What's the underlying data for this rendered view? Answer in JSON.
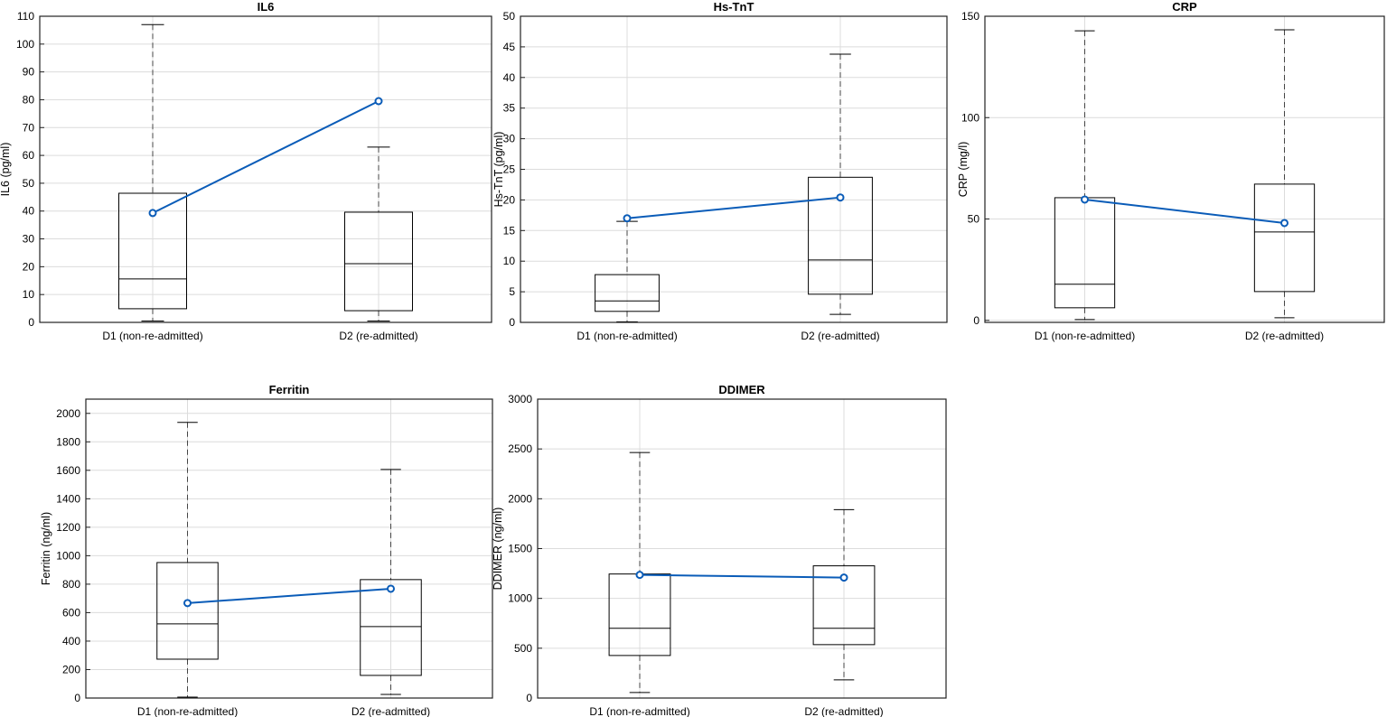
{
  "chart_data": [
    {
      "type": "box",
      "title": "IL6",
      "ylabel": "IL6 (pg/ml)",
      "categories": [
        "D1 (non-re-admitted)",
        "D2 (re-admitted)"
      ],
      "ylim": [
        0,
        110
      ],
      "yticks": [
        0,
        10,
        20,
        30,
        40,
        50,
        60,
        70,
        80,
        90,
        100,
        110
      ],
      "grid": true,
      "boxes": [
        {
          "whisker_low": 0.5,
          "q1": 4.9,
          "median": 15.6,
          "q3": 46.4,
          "whisker_high": 107
        },
        {
          "whisker_low": 0.5,
          "q1": 4.2,
          "median": 21.1,
          "q3": 39.6,
          "whisker_high": 63
        }
      ],
      "mean_line": {
        "color": "#0a5cb8",
        "values": [
          39.3,
          79.5
        ]
      }
    },
    {
      "type": "box",
      "title": "Hs-TnT",
      "ylabel": "Hs-TnT (pg/ml)",
      "categories": [
        "D1 (non-re-admitted)",
        "D2 (re-admitted)"
      ],
      "ylim": [
        0,
        50
      ],
      "yticks": [
        0,
        5,
        10,
        15,
        20,
        25,
        30,
        35,
        40,
        45,
        50
      ],
      "grid": true,
      "boxes": [
        {
          "whisker_low": 0.1,
          "q1": 1.8,
          "median": 3.5,
          "q3": 7.8,
          "whisker_high": 16.5
        },
        {
          "whisker_low": 1.3,
          "q1": 4.6,
          "median": 10.2,
          "q3": 23.7,
          "whisker_high": 43.8
        }
      ],
      "mean_line": {
        "color": "#0a5cb8",
        "values": [
          17,
          20.4
        ]
      }
    },
    {
      "type": "box",
      "title": "CRP",
      "ylabel": "CRP (mg/l)",
      "categories": [
        "D1 (non-re-admitted)",
        "D2 (re-admitted)"
      ],
      "ylim": [
        -1,
        150
      ],
      "yticks": [
        0,
        50,
        100,
        150
      ],
      "grid": true,
      "boxes": [
        {
          "whisker_low": 0.4,
          "q1": 6.2,
          "median": 17.8,
          "q3": 60.5,
          "whisker_high": 142.8
        },
        {
          "whisker_low": 1.3,
          "q1": 14.2,
          "median": 43.6,
          "q3": 67.2,
          "whisker_high": 143.3
        }
      ],
      "mean_line": {
        "color": "#0a5cb8",
        "values": [
          59.6,
          48
        ]
      }
    },
    {
      "type": "box",
      "title": "Ferritin",
      "ylabel": "Ferritin (ng/ml)",
      "categories": [
        "D1 (non-re-admitted)",
        "D2 (re-admitted)"
      ],
      "ylim": [
        0,
        2100
      ],
      "yticks": [
        0,
        200,
        400,
        600,
        800,
        1000,
        1200,
        1400,
        1600,
        1800,
        2000
      ],
      "grid": true,
      "boxes": [
        {
          "whisker_low": 6,
          "q1": 273,
          "median": 521,
          "q3": 952,
          "whisker_high": 1937
        },
        {
          "whisker_low": 25,
          "q1": 159,
          "median": 502,
          "q3": 832,
          "whisker_high": 1606
        }
      ],
      "mean_line": {
        "color": "#0a5cb8",
        "values": [
          667,
          768
        ]
      }
    },
    {
      "type": "box",
      "title": "DDIMER",
      "ylabel": "DDIMER (ng/ml)",
      "categories": [
        "D1 (non-re-admitted)",
        "D2 (re-admitted)"
      ],
      "ylim": [
        0,
        3000
      ],
      "yticks": [
        0,
        500,
        1000,
        1500,
        2000,
        2500,
        3000
      ],
      "grid": true,
      "boxes": [
        {
          "whisker_low": 55,
          "q1": 427,
          "median": 700,
          "q3": 1245,
          "whisker_high": 2464
        },
        {
          "whisker_low": 182,
          "q1": 536,
          "median": 700,
          "q3": 1327,
          "whisker_high": 1891
        }
      ],
      "mean_line": {
        "color": "#0a5cb8",
        "values": [
          1236,
          1209
        ]
      }
    }
  ]
}
